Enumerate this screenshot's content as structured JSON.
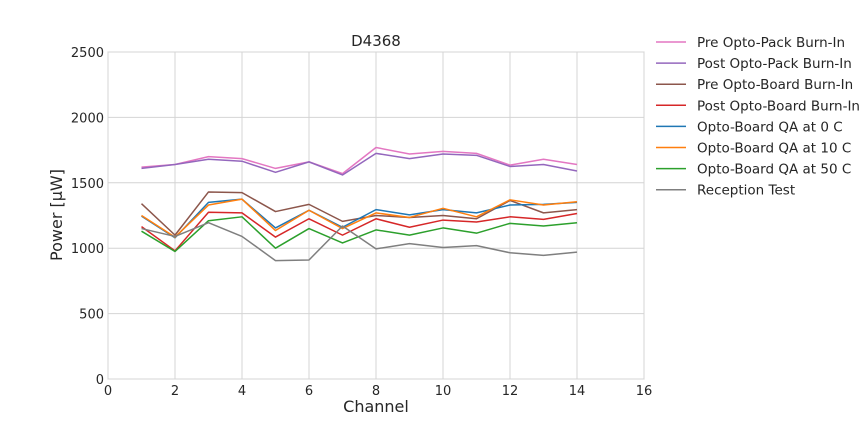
{
  "chart_data": {
    "type": "line",
    "title": "D4368",
    "xlabel": "Channel",
    "ylabel": "Power [μW]",
    "xlim": [
      0,
      16
    ],
    "ylim": [
      0,
      2500
    ],
    "xticks": [
      0,
      2,
      4,
      6,
      8,
      10,
      12,
      14,
      16
    ],
    "yticks": [
      0,
      500,
      1000,
      1500,
      2000,
      2500
    ],
    "grid": true,
    "legend_position": "outside-right",
    "x": [
      1,
      2,
      3,
      4,
      5,
      6,
      7,
      8,
      9,
      10,
      11,
      12,
      13,
      14
    ],
    "series": [
      {
        "name": "Pre Opto-Pack Burn-In",
        "color": "#e377c2",
        "values": [
          1620,
          1640,
          1700,
          1685,
          1610,
          1660,
          1570,
          1770,
          1720,
          1740,
          1725,
          1635,
          1680,
          1640
        ]
      },
      {
        "name": "Post Opto-Pack Burn-In",
        "color": "#9467bd",
        "values": [
          1610,
          1640,
          1680,
          1665,
          1580,
          1660,
          1560,
          1725,
          1685,
          1720,
          1710,
          1625,
          1640,
          1590
        ]
      },
      {
        "name": "Pre Opto-Board Burn-In",
        "color": "#8c564b",
        "values": [
          1340,
          1100,
          1430,
          1425,
          1280,
          1335,
          1205,
          1250,
          1235,
          1250,
          1225,
          1365,
          1270,
          1295
        ]
      },
      {
        "name": "Post Opto-Board Burn-In",
        "color": "#d62728",
        "values": [
          1165,
          980,
          1275,
          1270,
          1085,
          1225,
          1100,
          1225,
          1160,
          1215,
          1200,
          1240,
          1220,
          1265
        ]
      },
      {
        "name": "Opto-Board QA at 0 C",
        "color": "#1f77b4",
        "values": [
          1245,
          1080,
          1350,
          1375,
          1155,
          1290,
          1160,
          1295,
          1255,
          1295,
          1270,
          1330,
          1335,
          1350
        ]
      },
      {
        "name": "Opto-Board QA at 10 C",
        "color": "#ff7f0e",
        "values": [
          1250,
          1085,
          1330,
          1375,
          1135,
          1290,
          1150,
          1270,
          1235,
          1305,
          1240,
          1370,
          1330,
          1355
        ]
      },
      {
        "name": "Opto-Board QA at 50 C",
        "color": "#2ca02c",
        "values": [
          1130,
          975,
          1210,
          1240,
          1000,
          1150,
          1040,
          1140,
          1100,
          1155,
          1115,
          1190,
          1170,
          1195
        ]
      },
      {
        "name": "Reception Test",
        "color": "#7f7f7f",
        "values": [
          1150,
          1090,
          1195,
          1090,
          905,
          910,
          1170,
          995,
          1035,
          1005,
          1020,
          965,
          945,
          970
        ]
      }
    ]
  }
}
